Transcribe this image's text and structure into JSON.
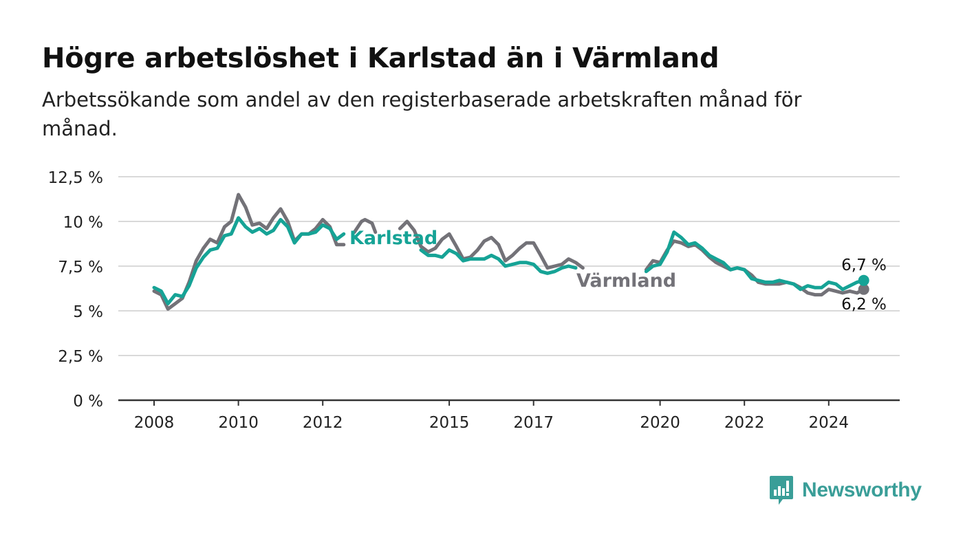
{
  "title": "Högre arbetslöshet i Karlstad än i Värmland",
  "subtitle": "Arbetssökande som andel av den registerbaserade arbetskraften månad för månad.",
  "brand": {
    "name": "Newsworthy",
    "icon": "newsworthy-logo-icon",
    "color": "#3a9e98"
  },
  "colors": {
    "karlstad": "#16a396",
    "varmland": "#737278",
    "grid": "#d9d9d9",
    "axis": "#333333"
  },
  "chart_data": {
    "type": "line",
    "xlim": [
      2007.0,
      2025.5
    ],
    "ylim": [
      0,
      12.5
    ],
    "xticks": [
      {
        "value": 2008,
        "label": "2008"
      },
      {
        "value": 2010,
        "label": "2010"
      },
      {
        "value": 2012,
        "label": "2012"
      },
      {
        "value": 2015,
        "label": "2015"
      },
      {
        "value": 2017,
        "label": "2017"
      },
      {
        "value": 2020,
        "label": "2020"
      },
      {
        "value": 2022,
        "label": "2022"
      },
      {
        "value": 2024,
        "label": "2024"
      }
    ],
    "yticks": [
      {
        "value": 0,
        "label": "0 %"
      },
      {
        "value": 2.5,
        "label": "2,5 %"
      },
      {
        "value": 5,
        "label": "5 %"
      },
      {
        "value": 7.5,
        "label": "7,5 %"
      },
      {
        "value": 10,
        "label": "10 %"
      },
      {
        "value": 12.5,
        "label": "12,5 %"
      }
    ],
    "grid": true,
    "series": [
      {
        "name": "Värmland",
        "color": "#737278",
        "segments": [
          [
            [
              2008.0,
              6.1
            ],
            [
              2008.17,
              5.9
            ],
            [
              2008.33,
              5.1
            ],
            [
              2008.5,
              5.4
            ],
            [
              2008.67,
              5.7
            ],
            [
              2008.83,
              6.6
            ],
            [
              2009.0,
              7.8
            ],
            [
              2009.17,
              8.5
            ],
            [
              2009.33,
              9.0
            ],
            [
              2009.5,
              8.8
            ],
            [
              2009.67,
              9.7
            ],
            [
              2009.83,
              10.0
            ],
            [
              2010.0,
              11.5
            ],
            [
              2010.17,
              10.8
            ],
            [
              2010.33,
              9.8
            ],
            [
              2010.5,
              9.9
            ],
            [
              2010.67,
              9.6
            ],
            [
              2010.83,
              10.2
            ],
            [
              2011.0,
              10.7
            ],
            [
              2011.17,
              10.0
            ],
            [
              2011.33,
              8.9
            ],
            [
              2011.5,
              9.3
            ],
            [
              2011.67,
              9.3
            ],
            [
              2011.83,
              9.6
            ],
            [
              2012.0,
              10.1
            ],
            [
              2012.17,
              9.7
            ],
            [
              2012.33,
              8.7
            ],
            [
              2012.5,
              8.7
            ]
          ],
          [
            [
              2012.75,
              9.4
            ],
            [
              2012.92,
              10.0
            ],
            [
              2013.0,
              10.1
            ],
            [
              2013.17,
              9.9
            ],
            [
              2013.25,
              9.4
            ]
          ],
          [
            [
              2013.83,
              9.6
            ],
            [
              2014.0,
              10.0
            ],
            [
              2014.17,
              9.5
            ],
            [
              2014.33,
              8.6
            ],
            [
              2014.5,
              8.3
            ],
            [
              2014.67,
              8.5
            ],
            [
              2014.83,
              9.0
            ],
            [
              2015.0,
              9.3
            ],
            [
              2015.17,
              8.6
            ],
            [
              2015.33,
              7.9
            ],
            [
              2015.5,
              8.0
            ],
            [
              2015.67,
              8.4
            ],
            [
              2015.83,
              8.9
            ],
            [
              2016.0,
              9.1
            ],
            [
              2016.17,
              8.7
            ],
            [
              2016.33,
              7.8
            ],
            [
              2016.5,
              8.1
            ],
            [
              2016.67,
              8.5
            ],
            [
              2016.83,
              8.8
            ],
            [
              2017.0,
              8.8
            ],
            [
              2017.17,
              8.1
            ],
            [
              2017.33,
              7.4
            ],
            [
              2017.5,
              7.5
            ],
            [
              2017.67,
              7.6
            ],
            [
              2017.83,
              7.9
            ],
            [
              2018.0,
              7.7
            ],
            [
              2018.17,
              7.4
            ]
          ],
          [
            [
              2019.67,
              7.3
            ],
            [
              2019.83,
              7.8
            ],
            [
              2020.0,
              7.7
            ],
            [
              2020.17,
              8.4
            ],
            [
              2020.33,
              8.9
            ],
            [
              2020.5,
              8.8
            ],
            [
              2020.67,
              8.6
            ],
            [
              2020.83,
              8.7
            ],
            [
              2021.0,
              8.4
            ],
            [
              2021.17,
              8.0
            ],
            [
              2021.33,
              7.7
            ],
            [
              2021.5,
              7.5
            ],
            [
              2021.67,
              7.3
            ],
            [
              2021.83,
              7.4
            ],
            [
              2022.0,
              7.3
            ],
            [
              2022.17,
              7.0
            ],
            [
              2022.33,
              6.6
            ],
            [
              2022.5,
              6.5
            ],
            [
              2022.67,
              6.5
            ],
            [
              2022.83,
              6.5
            ],
            [
              2023.0,
              6.6
            ],
            [
              2023.17,
              6.5
            ],
            [
              2023.33,
              6.3
            ],
            [
              2023.5,
              6.0
            ],
            [
              2023.67,
              5.9
            ],
            [
              2023.83,
              5.9
            ],
            [
              2024.0,
              6.2
            ],
            [
              2024.17,
              6.1
            ],
            [
              2024.33,
              6.0
            ],
            [
              2024.5,
              6.1
            ],
            [
              2024.67,
              6.0
            ],
            [
              2024.83,
              6.2
            ]
          ]
        ],
        "end_label": "6,2 %",
        "label": "Värmland"
      },
      {
        "name": "Karlstad",
        "color": "#16a396",
        "segments": [
          [
            [
              2008.0,
              6.3
            ],
            [
              2008.17,
              6.1
            ],
            [
              2008.33,
              5.4
            ],
            [
              2008.5,
              5.9
            ],
            [
              2008.67,
              5.8
            ],
            [
              2008.83,
              6.4
            ],
            [
              2009.0,
              7.4
            ],
            [
              2009.17,
              8.0
            ],
            [
              2009.33,
              8.4
            ],
            [
              2009.5,
              8.5
            ],
            [
              2009.67,
              9.2
            ],
            [
              2009.83,
              9.3
            ],
            [
              2010.0,
              10.2
            ],
            [
              2010.17,
              9.7
            ],
            [
              2010.33,
              9.4
            ],
            [
              2010.5,
              9.6
            ],
            [
              2010.67,
              9.3
            ],
            [
              2010.83,
              9.5
            ],
            [
              2011.0,
              10.1
            ],
            [
              2011.17,
              9.7
            ],
            [
              2011.33,
              8.8
            ],
            [
              2011.5,
              9.3
            ],
            [
              2011.67,
              9.3
            ],
            [
              2011.83,
              9.4
            ],
            [
              2012.0,
              9.8
            ],
            [
              2012.17,
              9.6
            ],
            [
              2012.33,
              9.0
            ],
            [
              2012.5,
              9.3
            ]
          ],
          [
            [
              2014.33,
              8.4
            ],
            [
              2014.5,
              8.1
            ],
            [
              2014.67,
              8.1
            ],
            [
              2014.83,
              8.0
            ],
            [
              2015.0,
              8.4
            ],
            [
              2015.17,
              8.2
            ],
            [
              2015.33,
              7.8
            ],
            [
              2015.5,
              7.9
            ],
            [
              2015.67,
              7.9
            ],
            [
              2015.83,
              7.9
            ],
            [
              2016.0,
              8.1
            ],
            [
              2016.17,
              7.9
            ],
            [
              2016.33,
              7.5
            ],
            [
              2016.5,
              7.6
            ],
            [
              2016.67,
              7.7
            ],
            [
              2016.83,
              7.7
            ],
            [
              2017.0,
              7.6
            ],
            [
              2017.17,
              7.2
            ],
            [
              2017.33,
              7.1
            ],
            [
              2017.5,
              7.2
            ],
            [
              2017.67,
              7.4
            ],
            [
              2017.83,
              7.5
            ],
            [
              2018.0,
              7.4
            ]
          ],
          [
            [
              2019.67,
              7.2
            ],
            [
              2019.83,
              7.5
            ],
            [
              2020.0,
              7.6
            ],
            [
              2020.17,
              8.3
            ],
            [
              2020.33,
              9.4
            ],
            [
              2020.5,
              9.1
            ],
            [
              2020.67,
              8.7
            ],
            [
              2020.83,
              8.8
            ],
            [
              2021.0,
              8.5
            ],
            [
              2021.17,
              8.1
            ],
            [
              2021.33,
              7.9
            ],
            [
              2021.5,
              7.7
            ],
            [
              2021.67,
              7.3
            ],
            [
              2021.83,
              7.4
            ],
            [
              2022.0,
              7.3
            ],
            [
              2022.17,
              6.8
            ],
            [
              2022.33,
              6.7
            ],
            [
              2022.5,
              6.6
            ],
            [
              2022.67,
              6.6
            ],
            [
              2022.83,
              6.7
            ],
            [
              2023.0,
              6.6
            ],
            [
              2023.17,
              6.5
            ],
            [
              2023.33,
              6.2
            ],
            [
              2023.5,
              6.4
            ],
            [
              2023.67,
              6.3
            ],
            [
              2023.83,
              6.3
            ],
            [
              2024.0,
              6.6
            ],
            [
              2024.17,
              6.5
            ],
            [
              2024.33,
              6.2
            ],
            [
              2024.5,
              6.4
            ],
            [
              2024.67,
              6.6
            ],
            [
              2024.83,
              6.7
            ]
          ]
        ],
        "end_label": "6,7 %",
        "label": "Karlstad"
      }
    ]
  }
}
